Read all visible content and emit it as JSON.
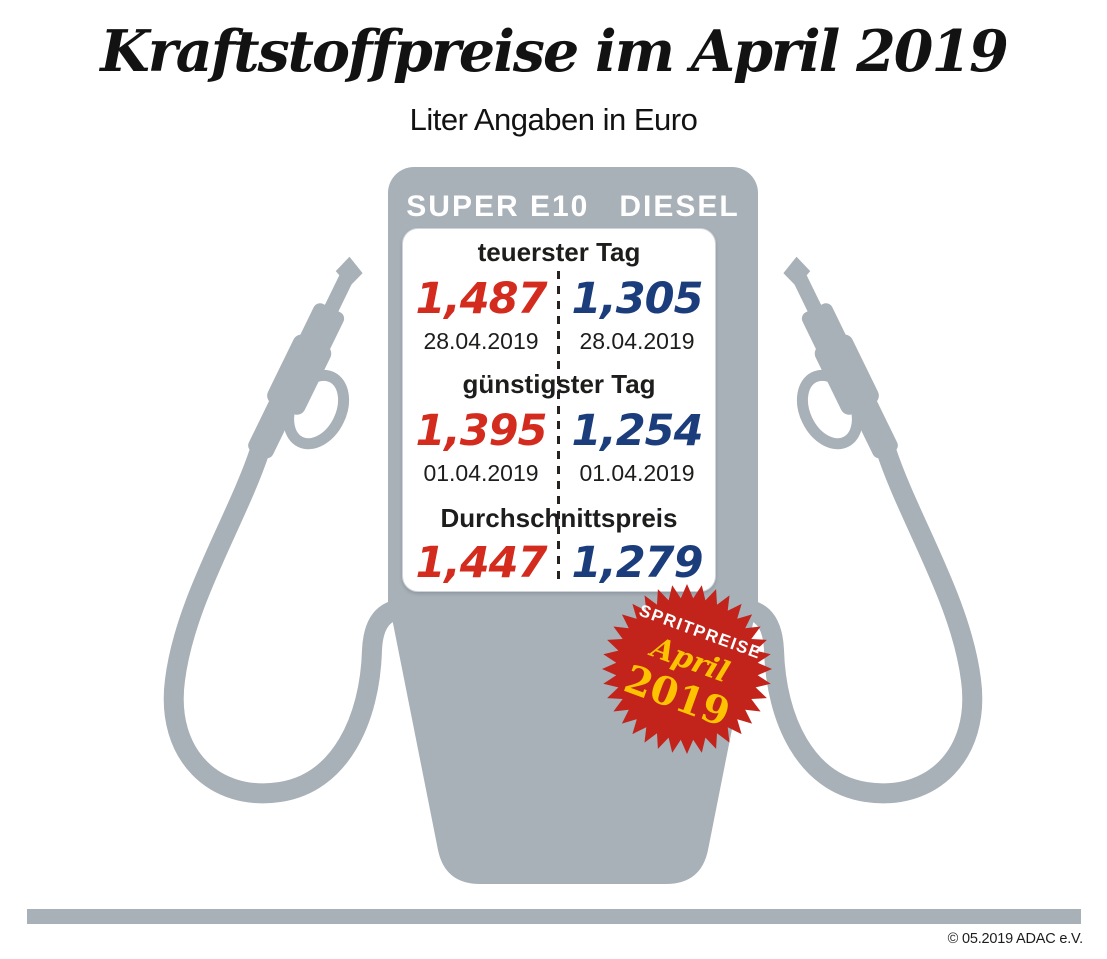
{
  "header": {
    "title": "Kraftstoffpreise im April 2019",
    "subtitle": "Liter Angaben in Euro"
  },
  "pump": {
    "columns": [
      "SUPER E10",
      "DIESEL"
    ],
    "sections": [
      {
        "label": "teuerster Tag",
        "super_e10": {
          "value": "1,487",
          "date": "28.04.2019"
        },
        "diesel": {
          "value": "1,305",
          "date": "28.04.2019"
        }
      },
      {
        "label": "günstigster Tag",
        "super_e10": {
          "value": "1,395",
          "date": "01.04.2019"
        },
        "diesel": {
          "value": "1,254",
          "date": "01.04.2019"
        }
      },
      {
        "label": "Durchschnittspreis",
        "super_e10": {
          "value": "1,447"
        },
        "diesel": {
          "value": "1,279"
        }
      }
    ]
  },
  "badge": {
    "line1": "SPRITPREISE",
    "line2": "April",
    "line3": "2019"
  },
  "footer": {
    "copyright": "© 05.2019 ADAC e.V."
  },
  "colors": {
    "super_e10_red": "#d32b1e",
    "diesel_blue": "#1c3d7c",
    "pump_gray": "#a8b0b8",
    "badge_red": "#c2231b",
    "badge_yellow": "#fdc300"
  },
  "chart_data": {
    "type": "table",
    "title": "Kraftstoffpreise im April 2019",
    "subtitle": "Liter Angaben in Euro",
    "unit": "Euro je Liter",
    "columns": [
      "SUPER E10",
      "DIESEL"
    ],
    "rows": [
      {
        "label": "teuerster Tag",
        "super_e10": 1.487,
        "super_e10_date": "28.04.2019",
        "diesel": 1.305,
        "diesel_date": "28.04.2019"
      },
      {
        "label": "günstigster Tag",
        "super_e10": 1.395,
        "super_e10_date": "01.04.2019",
        "diesel": 1.254,
        "diesel_date": "01.04.2019"
      },
      {
        "label": "Durchschnittspreis",
        "super_e10": 1.447,
        "diesel": 1.279
      }
    ],
    "source_badge": "SPRITPREISE April 2019",
    "legend_position": "column headers on pump",
    "grid": false
  }
}
